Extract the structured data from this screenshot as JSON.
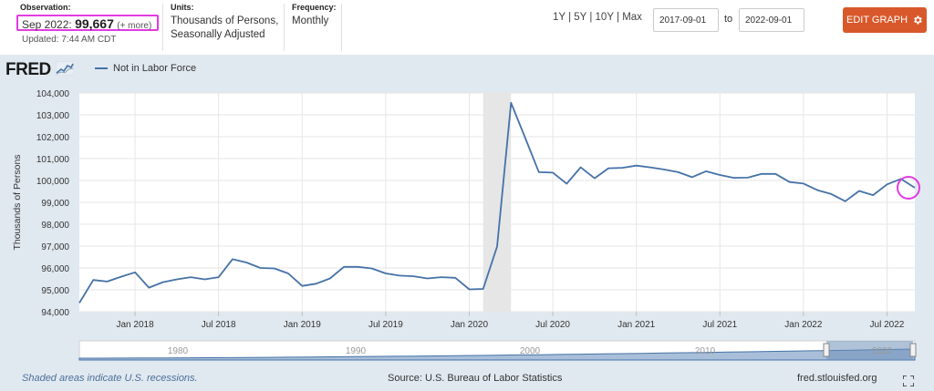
{
  "header": {
    "observation_label": "Observation:",
    "observation_date": "Sep 2022:",
    "observation_value": "99,667",
    "observation_more": "(+ more)",
    "updated": "Updated: 7:44 AM CDT",
    "units_label": "Units:",
    "units_line1": "Thousands of Persons,",
    "units_line2": "Seasonally Adjusted",
    "frequency_label": "Frequency:",
    "frequency_value": "Monthly",
    "range_1y": "1Y",
    "range_5y": "5Y",
    "range_10y": "10Y",
    "range_max": "Max",
    "range_sep": "|",
    "date_from": "2017-09-01",
    "date_to": "2022-09-01",
    "to_label": "to",
    "edit_graph": "EDIT GRAPH"
  },
  "logo": {
    "text": "FRED"
  },
  "footer": {
    "recession_note": "Shaded areas indicate U.S. recessions.",
    "source": "Source: U.S. Bureau of Labor Statistics",
    "url": "fred.stlouisfed.org"
  },
  "icons": {
    "gear": "gear-icon",
    "fullscreen": "fullscreen-icon",
    "logo_chart": "line-chart-icon"
  },
  "colors": {
    "series": "#4572a7",
    "recession": "#e6e6e6",
    "accent_button": "#d9582b",
    "highlight": "#e23be2",
    "background": "#e1e9f0"
  },
  "chart_data": {
    "type": "line",
    "series": [
      {
        "name": "Not in Labor Force",
        "x": [
          "2017-09",
          "2017-10",
          "2017-11",
          "2017-12",
          "2018-01",
          "2018-02",
          "2018-03",
          "2018-04",
          "2018-05",
          "2018-06",
          "2018-07",
          "2018-08",
          "2018-09",
          "2018-10",
          "2018-11",
          "2018-12",
          "2019-01",
          "2019-02",
          "2019-03",
          "2019-04",
          "2019-05",
          "2019-06",
          "2019-07",
          "2019-08",
          "2019-09",
          "2019-10",
          "2019-11",
          "2019-12",
          "2020-01",
          "2020-02",
          "2020-03",
          "2020-04",
          "2020-05",
          "2020-06",
          "2020-07",
          "2020-08",
          "2020-09",
          "2020-10",
          "2020-11",
          "2020-12",
          "2021-01",
          "2021-02",
          "2021-03",
          "2021-04",
          "2021-05",
          "2021-06",
          "2021-07",
          "2021-08",
          "2021-09",
          "2021-10",
          "2021-11",
          "2021-12",
          "2022-01",
          "2022-02",
          "2022-03",
          "2022-04",
          "2022-05",
          "2022-06",
          "2022-07",
          "2022-08",
          "2022-09"
        ],
        "values": [
          94400,
          95450,
          95380,
          95600,
          95800,
          95100,
          95350,
          95480,
          95580,
          95480,
          95580,
          96400,
          96250,
          96000,
          95980,
          95750,
          95180,
          95280,
          95520,
          96050,
          96050,
          95980,
          95750,
          95650,
          95620,
          95520,
          95580,
          95550,
          95020,
          95040,
          96980,
          103550,
          101980,
          100380,
          100360,
          99850,
          100600,
          100100,
          100560,
          100580,
          100680,
          100600,
          100500,
          100380,
          100150,
          100420,
          100250,
          100120,
          100130,
          100300,
          100300,
          99930,
          99860,
          99560,
          99380,
          99050,
          99520,
          99330,
          99820,
          100070,
          99667
        ]
      }
    ],
    "ylabel": "Thousands of Persons",
    "ylim": [
      94000,
      104000
    ],
    "yticks": [
      94000,
      95000,
      96000,
      97000,
      98000,
      99000,
      100000,
      101000,
      102000,
      103000,
      104000
    ],
    "ytick_labels": [
      "94,000",
      "95,000",
      "96,000",
      "97,000",
      "98,000",
      "99,000",
      "100,000",
      "101,000",
      "102,000",
      "103,000",
      "104,000"
    ],
    "xticks": [
      "2018-01",
      "2018-07",
      "2019-01",
      "2019-07",
      "2020-01",
      "2020-07",
      "2021-01",
      "2021-07",
      "2022-01",
      "2022-07"
    ],
    "xtick_labels": [
      "Jan 2018",
      "Jul 2018",
      "Jan 2019",
      "Jul 2019",
      "Jan 2020",
      "Jul 2020",
      "Jan 2021",
      "Jul 2021",
      "Jan 2022",
      "Jul 2022"
    ],
    "recession": [
      "2020-02",
      "2020-04"
    ],
    "grid": true,
    "navigator": {
      "labels": [
        "1980",
        "1990",
        "2000",
        "2010",
        "2020"
      ]
    }
  }
}
